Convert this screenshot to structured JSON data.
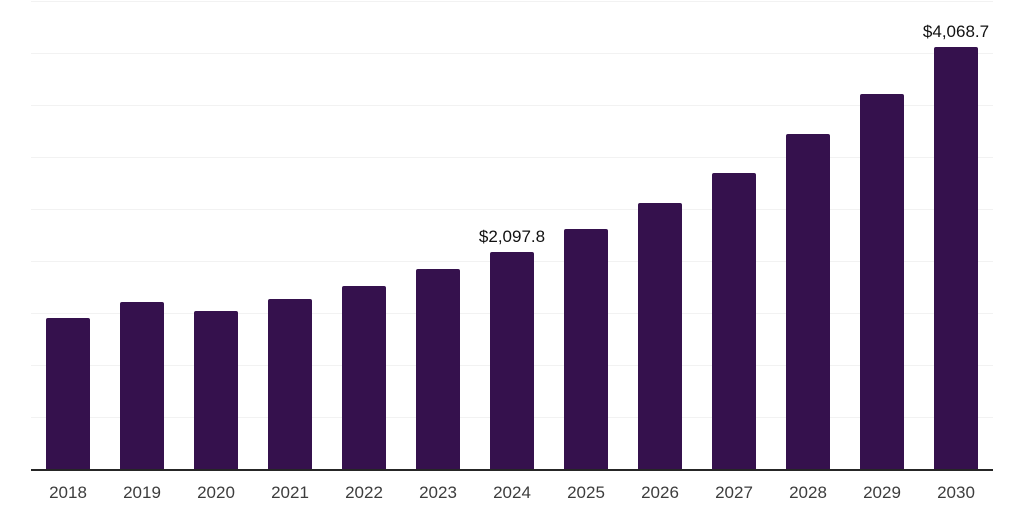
{
  "chart_data": {
    "type": "bar",
    "title": "",
    "xlabel": "",
    "ylabel": "",
    "categories": [
      "2018",
      "2019",
      "2020",
      "2021",
      "2022",
      "2023",
      "2024",
      "2025",
      "2026",
      "2027",
      "2028",
      "2029",
      "2030"
    ],
    "values": [
      1464,
      1615,
      1532,
      1644,
      1770,
      1930,
      2097.8,
      2315,
      2570,
      2860,
      3230,
      3612,
      4068.7
    ],
    "data_labels": [
      {
        "category": "2024",
        "text": "$2,097.8"
      },
      {
        "category": "2030",
        "text": "$4,068.7"
      }
    ],
    "ylim": [
      0,
      4500
    ],
    "gridline_step": 500,
    "grid": "horizontal-only",
    "legend": "none",
    "y_tick_labels_visible": false,
    "colors": {
      "bar": "#35114D",
      "axis_line": "#262626",
      "gridline": "#F2F2F2",
      "tick_label": "#3D3D3D",
      "data_label": "#111111"
    }
  }
}
